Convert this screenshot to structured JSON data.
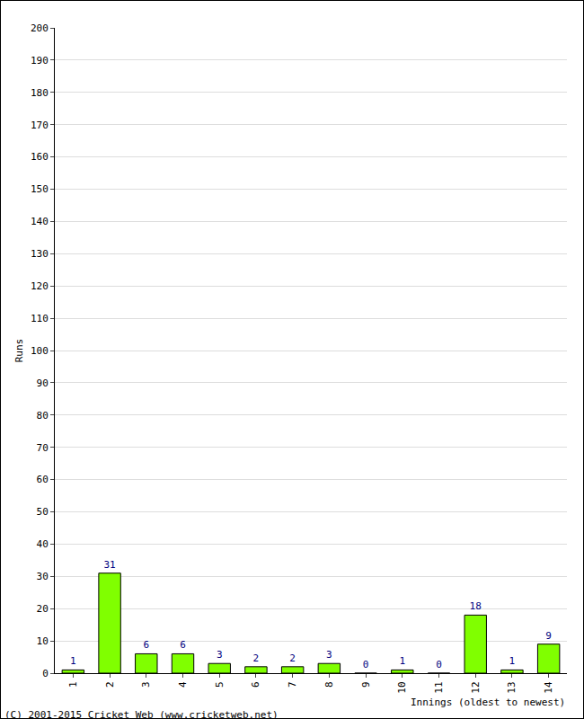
{
  "chart_data": {
    "type": "bar",
    "categories": [
      "1",
      "2",
      "3",
      "4",
      "5",
      "6",
      "7",
      "8",
      "9",
      "10",
      "11",
      "12",
      "13",
      "14"
    ],
    "values": [
      1,
      31,
      6,
      6,
      3,
      2,
      2,
      3,
      0,
      1,
      0,
      18,
      1,
      9
    ],
    "color": "#80ff00",
    "x_label": "Innings (oldest to newest)",
    "y_label": "Runs",
    "annotations": [
      "(C) 2001-2015 Cricket Web (www.cricketweb.net)"
    ],
    "ylim": [
      0,
      200
    ],
    "yticks": [
      0,
      10,
      20,
      30,
      40,
      50,
      60,
      70,
      80,
      90,
      100,
      110,
      120,
      130,
      140,
      150,
      160,
      170,
      180,
      190,
      200
    ],
    "grid": true,
    "data_labels": true
  }
}
